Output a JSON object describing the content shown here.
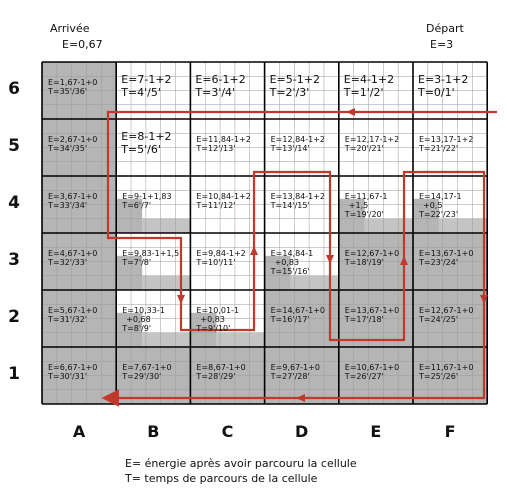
{
  "header": {
    "arrival_title": "Arrivée",
    "arrival_energy": "E=0,67",
    "departure_title": "Départ",
    "departure_energy": "E=3"
  },
  "columns": [
    "A",
    "B",
    "C",
    "D",
    "E",
    "F"
  ],
  "rows": [
    "6",
    "5",
    "4",
    "3",
    "2",
    "1"
  ],
  "cells": {
    "A6": {
      "e": "E=1,67-1+0",
      "t": "T=35'/36'",
      "size": "small",
      "shade": "full"
    },
    "B6": {
      "e": "E=7-1+2",
      "t": "T=4'/5'",
      "size": "big",
      "shade": "none"
    },
    "C6": {
      "e": "E=6-1+2",
      "t": "T=3'/4'",
      "size": "big",
      "shade": "none"
    },
    "D6": {
      "e": "E=5-1+2",
      "t": "T=2'/3'",
      "size": "big",
      "shade": "none"
    },
    "E6": {
      "e": "E=4-1+2",
      "t": "T=1'/2'",
      "size": "big",
      "shade": "none"
    },
    "F6": {
      "e": "E=3-1+2",
      "t": "T=0/1'",
      "size": "big",
      "shade": "none"
    },
    "A5": {
      "e": "E=2,67-1+0",
      "t": "T=34'/35'",
      "size": "small",
      "shade": "full"
    },
    "B5": {
      "e": "E=8-1+2",
      "t": "T=5'/6'",
      "size": "big",
      "shade": "none"
    },
    "C5": {
      "e": "E=11,84-1+2",
      "t": "T=12'/13'",
      "size": "small",
      "shade": "none"
    },
    "D5": {
      "e": "E=12,84-1+2",
      "t": "T=13'/14'",
      "size": "small",
      "shade": "none"
    },
    "E5": {
      "e": "E=12,17-1+2",
      "t": "T=20'/21'",
      "size": "small",
      "shade": "none"
    },
    "F5": {
      "e": "E=13,17-1+2",
      "t": "T=21'/22'",
      "size": "small",
      "shade": "none"
    },
    "A4": {
      "e": "E=3,67-1+0",
      "t": "T=33'/34'",
      "size": "small",
      "shade": "full"
    },
    "B4": {
      "e": "E=9-1+1,83",
      "t": "T=6'/7'",
      "size": "small",
      "shade": "partial"
    },
    "C4": {
      "e": "E=10,84-1+2",
      "t": "T=11'/12'",
      "size": "small",
      "shade": "none"
    },
    "D4": {
      "e": "E=13,84-1+2",
      "t": "T=14'/15'",
      "size": "small",
      "shade": "none"
    },
    "E4": {
      "e": "E=11,67-1",
      "e2": "+1,5",
      "t": "T=19'/20'",
      "size": "small",
      "shade": "partial"
    },
    "F4": {
      "e": "E=14,17-1",
      "e2": "+0,5",
      "t": "T=22'/23'",
      "size": "small",
      "shade": "partial"
    },
    "A3": {
      "e": "E=4,67-1+0",
      "t": "T=32'/33'",
      "size": "small",
      "shade": "full"
    },
    "B3": {
      "e": "E=9,83-1+1,5",
      "t": "T=7'/8'",
      "size": "small",
      "shade": "partial"
    },
    "C3": {
      "e": "E=9,84-1+2",
      "t": "T=10'/11'",
      "size": "small",
      "shade": "none"
    },
    "D3": {
      "e": "E=14,84-1",
      "e2": "+0,83",
      "t": "T=15'/16'",
      "size": "small",
      "shade": "partial"
    },
    "E3": {
      "e": "E=12,67-1+0",
      "t": "T=18'/19'",
      "size": "small",
      "shade": "full"
    },
    "F3": {
      "e": "E=13,67-1+0",
      "t": "T=23'/24'",
      "size": "small",
      "shade": "full"
    },
    "A2": {
      "e": "E=5,67-1+0",
      "t": "T=31'/32'",
      "size": "small",
      "shade": "full"
    },
    "B2": {
      "e": "E=10,33-1",
      "e2": "+0,68",
      "t": "T=8'/9'",
      "size": "small",
      "shade": "partial"
    },
    "C2": {
      "e": "E=10,01-1",
      "e2": "+0,83",
      "t": "T=9'/10'",
      "size": "small",
      "shade": "partial"
    },
    "D2": {
      "e": "E=14,67-1+0",
      "t": "T=16'/17'",
      "size": "small",
      "shade": "full"
    },
    "E2": {
      "e": "E=13,67-1+0",
      "t": "T=17'/18'",
      "size": "small",
      "shade": "full"
    },
    "F2": {
      "e": "E=12,67-1+0",
      "t": "T=24'/25'",
      "size": "small",
      "shade": "full"
    },
    "A1": {
      "e": "E=6,67-1+0",
      "t": "T=30'/31'",
      "size": "small",
      "shade": "full"
    },
    "B1": {
      "e": "E=7,67-1+0",
      "t": "T=29'/30'",
      "size": "small",
      "shade": "full"
    },
    "C1": {
      "e": "E=8,67-1+0",
      "t": "T=28'/29'",
      "size": "small",
      "shade": "full"
    },
    "D1": {
      "e": "E=9,67-1+0",
      "t": "T=27'/28'",
      "size": "small",
      "shade": "full"
    },
    "E1": {
      "e": "E=10,67-1+0",
      "t": "T=26'/27'",
      "size": "small",
      "shade": "full"
    },
    "F1": {
      "e": "E=11,67-1+0",
      "t": "T=25'/26'",
      "size": "small",
      "shade": "full"
    }
  },
  "legend": {
    "line1": "E= énergie après avoir parcouru la cellule",
    "line2": "T= temps de parcours de la cellule"
  },
  "colors": {
    "path": "#c0392b",
    "shade": "#b5b5b5",
    "grid_line": "#000000",
    "fine_line": "#9a9a9a"
  }
}
